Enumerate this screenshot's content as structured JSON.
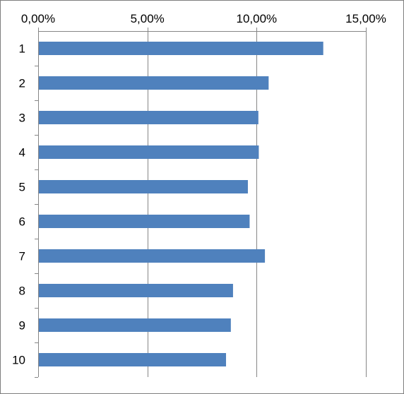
{
  "chart_data": {
    "type": "bar",
    "orientation": "horizontal",
    "title": "",
    "xlabel": "",
    "ylabel": "",
    "categories": [
      "1",
      "2",
      "3",
      "4",
      "5",
      "6",
      "7",
      "8",
      "9",
      "10"
    ],
    "values": [
      13.05,
      10.55,
      10.08,
      10.1,
      9.6,
      9.68,
      10.38,
      8.92,
      8.82,
      8.6
    ],
    "value_unit": "%",
    "xlim": [
      0,
      15
    ],
    "x_ticks": [
      0,
      5,
      10,
      15
    ],
    "x_tick_labels": [
      "0,00%",
      "5,00%",
      "10,00%",
      "15,00%"
    ],
    "x_axis_position": "top",
    "category_order": "top-to-bottom",
    "grid": "vertical major gridlines",
    "legend": "none",
    "bar_color": "#4F81BD",
    "gridline_color": "#868686"
  }
}
